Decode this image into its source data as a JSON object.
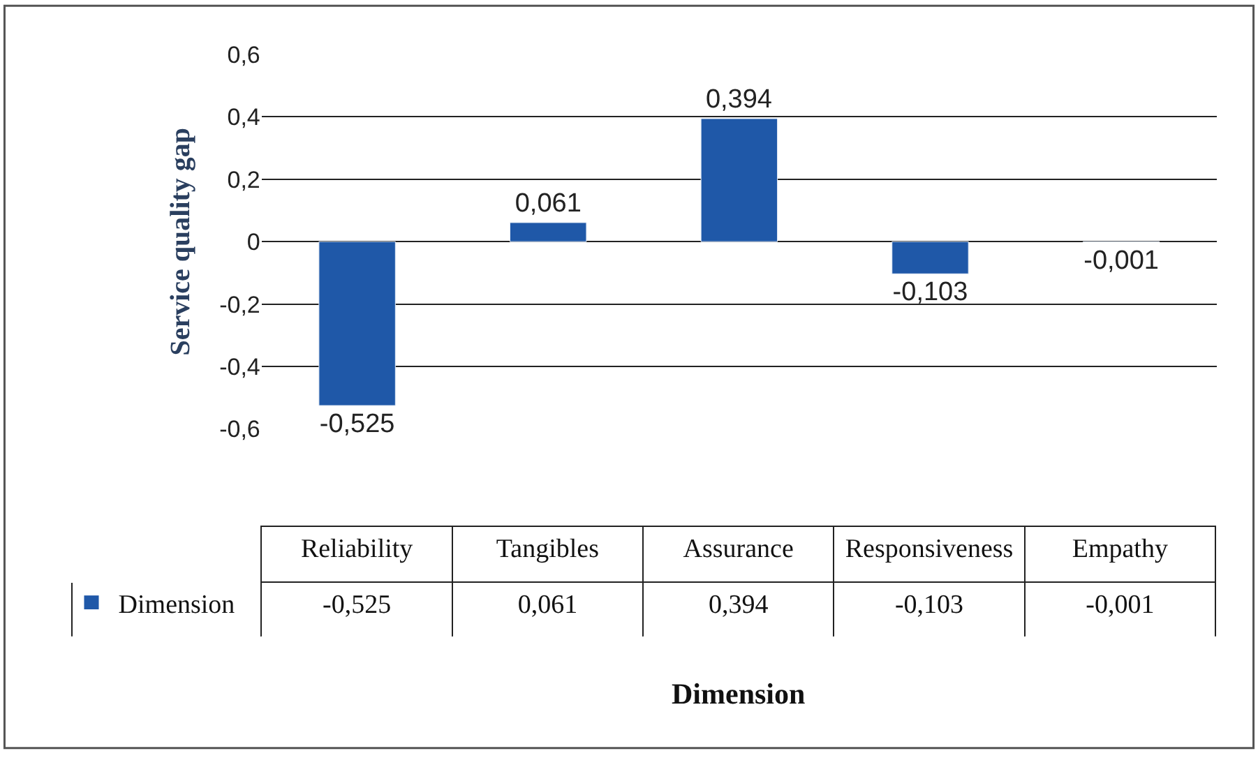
{
  "chart_data": {
    "type": "bar",
    "categories": [
      "Reliability",
      "Tangibles",
      "Assurance",
      "Responsiveness",
      "Empathy"
    ],
    "series": [
      {
        "name": "Dimension",
        "color": "#1f58a8",
        "values": [
          -0.525,
          0.061,
          0.394,
          -0.103,
          -0.001
        ],
        "value_labels": [
          "-0,525",
          "0,061",
          "0,394",
          "-0,103",
          "-0,001"
        ]
      }
    ],
    "ylim": [
      -0.6,
      0.6
    ],
    "yticks": [
      {
        "value": -0.6,
        "label": "-0,6"
      },
      {
        "value": -0.4,
        "label": "-0,4"
      },
      {
        "value": -0.2,
        "label": "-0,2"
      },
      0,
      {
        "value": 0.2,
        "label": "0,2"
      },
      {
        "value": 0.4,
        "label": "0,4"
      },
      {
        "value": 0.6,
        "label": "0,6"
      }
    ],
    "xlabel": "Dimension",
    "ylabel": "Service quality gap",
    "grid": "y",
    "tick_labels": "y"
  }
}
